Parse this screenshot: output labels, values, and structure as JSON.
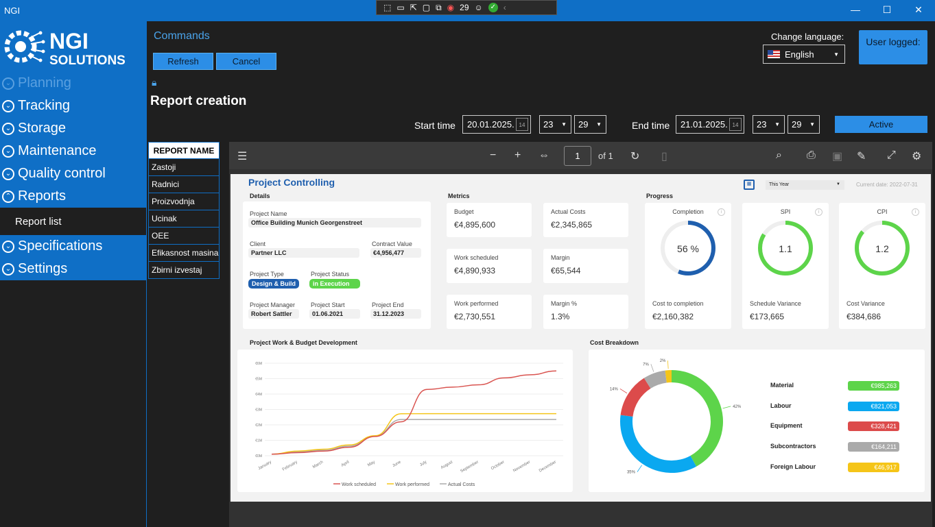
{
  "app": {
    "title": "NGI",
    "window_controls": {
      "min": "—",
      "max": "☐",
      "close": "✕"
    }
  },
  "rec_toolbar": {
    "count": "29"
  },
  "logo": {
    "line1": "NGI",
    "line2": "SOLUTIONS"
  },
  "nav": {
    "items": [
      {
        "label": "Planning",
        "state": "dim"
      },
      {
        "label": "Tracking"
      },
      {
        "label": "Storage"
      },
      {
        "label": "Maintenance"
      },
      {
        "label": "Quality control"
      },
      {
        "label": "Reports",
        "expanded": true
      }
    ],
    "sub_item": "Report list",
    "items_after": [
      {
        "label": "Specifications"
      },
      {
        "label": "Settings"
      }
    ]
  },
  "commands": {
    "title": "Commands",
    "refresh": "Refresh",
    "cancel": "Cancel"
  },
  "language": {
    "label": "Change language:",
    "selected": "English"
  },
  "user": {
    "label": "User logged:"
  },
  "page": {
    "title": "Report creation"
  },
  "filters": {
    "start_label": "Start time",
    "start_date": "20.01.2025.",
    "start_hour": "23",
    "start_min": "29",
    "end_label": "End time",
    "end_date": "21.01.2025.",
    "end_hour": "23",
    "end_min": "29",
    "active_label": "Active"
  },
  "report_names": {
    "header": "REPORT NAME",
    "items": [
      "Zastoji",
      "Radnici",
      "Proizvodnja",
      "Ucinak",
      "OEE",
      "Efikasnost masina",
      "Zbirni izvestaj"
    ]
  },
  "viewer": {
    "page": "1",
    "of": "of 1"
  },
  "report": {
    "title": "Project Controlling",
    "period": "This Year",
    "current_date": "Current date: 2022-07-31",
    "details": {
      "section": "Details",
      "project_name_label": "Project Name",
      "project_name": "Office Building Munich Georgenstreet",
      "client_label": "Client",
      "client": "Partner LLC",
      "contract_label": "Contract Value",
      "contract": "€4,956,477",
      "type_label": "Project Type",
      "type": "Design & Build",
      "status_label": "Project Status",
      "status": "in Execution",
      "manager_label": "Project Manager",
      "manager": "Robert Sattler",
      "start_label": "Project Start",
      "start": "01.06.2021",
      "end_label": "Project End",
      "end": "31.12.2023"
    },
    "metrics": {
      "section": "Metrics",
      "budget_label": "Budget",
      "budget": "€4,895,600",
      "actual_label": "Actual Costs",
      "actual": "€2,345,865",
      "scheduled_label": "Work scheduled",
      "scheduled": "€4,890,933",
      "margin_label": "Margin",
      "margin": "€65,544",
      "performed_label": "Work performed",
      "performed": "€2,730,551",
      "margin_pct_label": "Margin %",
      "margin_pct": "1.3%"
    },
    "progress": {
      "section": "Progress",
      "completion_label": "Completion",
      "completion": "56 %",
      "completion_value": 0.56,
      "spi_label": "SPI",
      "spi": "1.1",
      "cpi_label": "CPI",
      "cpi": "1.2",
      "ctc_label": "Cost to completion",
      "ctc": "€2,160,382",
      "sv_label": "Schedule Variance",
      "sv": "€173,665",
      "cv_label": "Cost Variance",
      "cv": "€384,686"
    },
    "colors": {
      "blue": "#1f5fae",
      "green": "#5dd44a",
      "cyan": "#0aa8f0",
      "red": "#dc4b4b",
      "gray": "#aaaaaa",
      "yellow": "#f5c518"
    }
  },
  "chart_data": [
    {
      "type": "line",
      "title": "Project Work & Budget Development",
      "categories": [
        "January",
        "February",
        "March",
        "April",
        "May",
        "June",
        "July",
        "August",
        "September",
        "October",
        "November",
        "December"
      ],
      "ytick_labels": [
        "€0M",
        "€1M",
        "€2M",
        "€3M",
        "€4M",
        "€5M",
        "€6M"
      ],
      "ylim": [
        0,
        6
      ],
      "series": [
        {
          "name": "Work scheduled",
          "color": "#d9534f",
          "values": [
            0.1,
            0.2,
            0.3,
            0.55,
            1.25,
            2.2,
            4.3,
            4.45,
            4.6,
            5.05,
            5.25,
            5.5
          ]
        },
        {
          "name": "Work performed",
          "color": "#f5c518",
          "values": [
            0.1,
            0.3,
            0.42,
            0.7,
            1.3,
            2.72,
            2.73,
            2.73,
            2.73,
            2.73,
            2.73,
            2.73
          ]
        },
        {
          "name": "Actual Costs",
          "color": "#aaaaaa",
          "values": [
            0.1,
            0.25,
            0.35,
            0.62,
            1.28,
            2.35,
            2.35,
            2.35,
            2.35,
            2.35,
            2.35,
            2.35
          ]
        }
      ],
      "grid": true,
      "legend": "bottom"
    },
    {
      "type": "pie",
      "title": "Cost Breakdown",
      "labels": [
        "Material",
        "Labour",
        "Equipment",
        "Subcontractors",
        "Foreign Labour"
      ],
      "values": [
        985263,
        821053,
        328421,
        164211,
        46917
      ],
      "value_labels": [
        "€985,263",
        "€821,053",
        "€328,421",
        "€164,211",
        "€46,917"
      ],
      "percent_labels": [
        "42%",
        "35%",
        "14%",
        "7%",
        "2%"
      ],
      "colors": [
        "#5dd44a",
        "#0aa8f0",
        "#dc4b4b",
        "#aaaaaa",
        "#f5c518"
      ],
      "legend": "right"
    }
  ]
}
